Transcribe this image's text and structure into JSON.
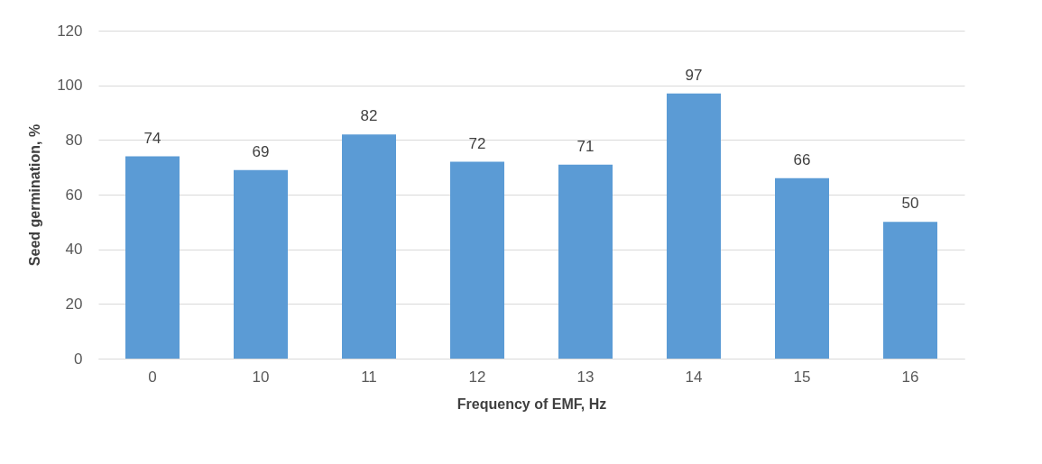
{
  "chart_data": {
    "type": "bar",
    "xlabel": "Frequency of EMF, Hz",
    "ylabel": "Seed germination, %",
    "categories": [
      "0",
      "10",
      "11",
      "12",
      "13",
      "14",
      "15",
      "16"
    ],
    "values": [
      74,
      69,
      82,
      72,
      71,
      97,
      66,
      50
    ],
    "color": "#5b9bd5",
    "ylim": [
      0,
      120
    ],
    "yticks": [
      0,
      20,
      40,
      60,
      80,
      100,
      120
    ],
    "grid": "y",
    "data_labels": true
  }
}
